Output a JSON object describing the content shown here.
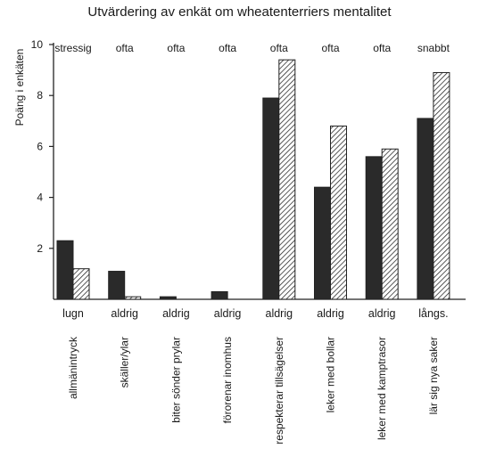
{
  "chart_data": {
    "type": "bar",
    "title": "Utvärdering av enkät om wheatenterriers mentalitet",
    "ylabel": "Poäng i enkäten",
    "xlabel": "",
    "ylim": [
      0,
      10
    ],
    "yticks": [
      2,
      4,
      6,
      8,
      10
    ],
    "grid": false,
    "legend": "none",
    "categories": [
      "allmänintryck",
      "skäller/ylar",
      "biter sönder prylar",
      "förorenar inomhus",
      "respekterar tillsägelser",
      "leker med bollar",
      "leker med kamptrasor",
      "lär sig nya saker"
    ],
    "top_labels": [
      "stressig",
      "ofta",
      "ofta",
      "ofta",
      "ofta",
      "ofta",
      "ofta",
      "snabbt"
    ],
    "bottom_labels": [
      "lugn",
      "aldrig",
      "aldrig",
      "aldrig",
      "aldrig",
      "aldrig",
      "aldrig",
      "långs."
    ],
    "series": [
      {
        "style": "solid",
        "color": "#2a2a2a",
        "values": [
          2.3,
          1.1,
          0.1,
          0.3,
          7.9,
          4.4,
          5.6,
          7.1
        ]
      },
      {
        "style": "hatched",
        "color": "#ffffff",
        "values": [
          1.2,
          0.1,
          0.0,
          0.0,
          9.4,
          6.8,
          5.9,
          8.9
        ]
      }
    ]
  }
}
